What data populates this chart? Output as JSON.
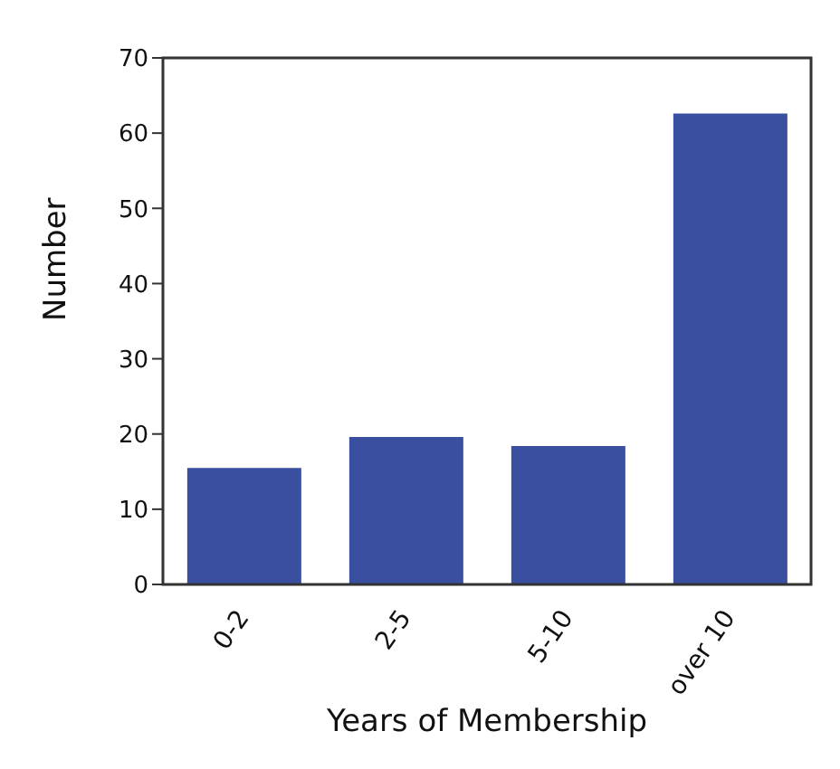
{
  "chart_data": {
    "type": "bar",
    "xlabel": "Years of Membership",
    "ylabel": "Number",
    "categories": [
      "0-2",
      "2-5",
      "5-10",
      "over 10"
    ],
    "values": [
      15.5,
      19.6,
      18.4,
      62.6
    ],
    "color": "#3b4fa0",
    "ylim": [
      0,
      70
    ],
    "yticks": [
      0,
      10,
      20,
      30,
      40,
      50,
      60,
      70
    ],
    "grid": false
  }
}
